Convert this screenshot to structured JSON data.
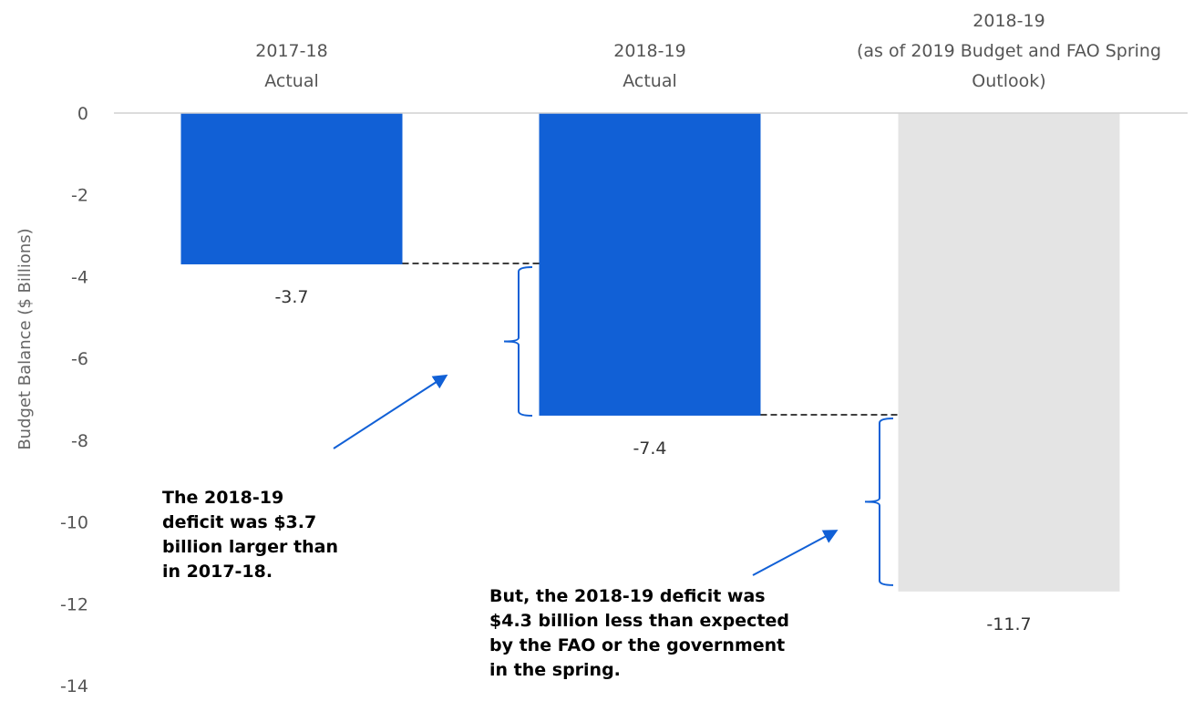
{
  "chart_data": {
    "type": "bar",
    "categories": [
      [
        "2017-18",
        "Actual"
      ],
      [
        "2018-19",
        "Actual"
      ],
      [
        "2018-19",
        "(as of 2019 Budget and FAO Spring",
        "Outlook)"
      ]
    ],
    "values": [
      -3.7,
      -7.4,
      -11.7
    ],
    "value_labels": [
      "-3.7",
      "-7.4",
      "-11.7"
    ],
    "bar_colors": [
      "#1160d6",
      "#1160d6",
      "#e4e4e4"
    ],
    "ylabel": "Budget Balance ($ Billions)",
    "ylim": [
      -14,
      0
    ],
    "yticks": [
      0,
      -2,
      -4,
      -6,
      -8,
      -10,
      -12,
      -14
    ],
    "grid": false,
    "annotations": [
      {
        "lines": [
          "The 2018-19",
          "deficit was $3.7",
          "billion larger than",
          "in 2017-18."
        ]
      },
      {
        "lines": [
          "But, the 2018-19 deficit was",
          "$4.3 billion less than expected",
          "by the FAO or the government",
          "in the spring."
        ]
      }
    ],
    "accent_color": "#1160d6"
  }
}
